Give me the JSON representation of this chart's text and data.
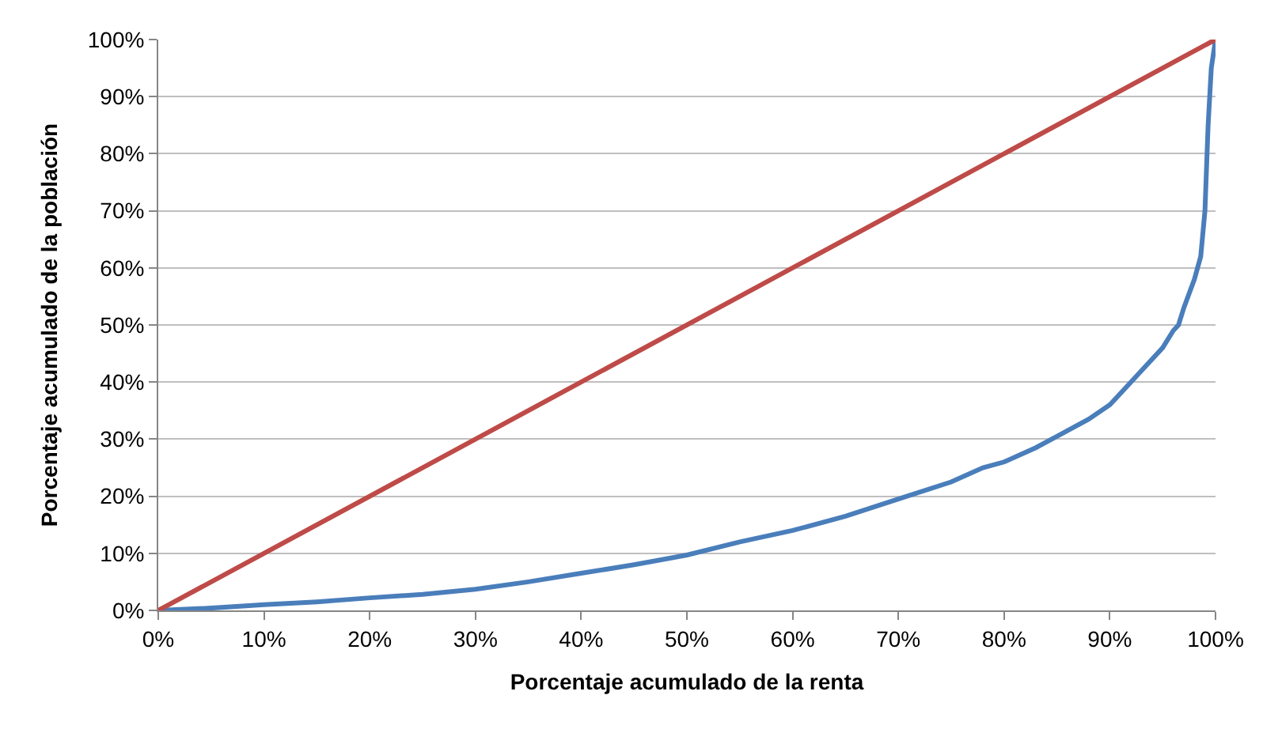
{
  "chart_data": {
    "type": "line",
    "xlabel": "Porcentaje acumulado de la renta",
    "ylabel": "Porcentaje acumulado de la población",
    "series": [
      {
        "color": "#4a7ebb",
        "x": [
          0,
          5,
          10,
          15,
          20,
          25,
          30,
          35,
          40,
          45,
          50,
          55,
          60,
          65,
          70,
          75,
          78,
          80,
          83,
          85,
          88,
          90,
          92,
          93,
          95,
          96,
          96.5,
          97,
          98,
          98.6,
          99,
          99.3,
          99.6,
          100
        ],
        "values": [
          0,
          0.4,
          1,
          1.5,
          2.2,
          2.8,
          3.7,
          5,
          6.5,
          8,
          9.7,
          12,
          14,
          16.5,
          19.5,
          22.5,
          25,
          26,
          28.5,
          30.5,
          33.5,
          36,
          40,
          42,
          46,
          49,
          50,
          53,
          58,
          62,
          70,
          85,
          95,
          100
        ]
      },
      {
        "color": "#be4b48",
        "x": [
          0,
          100
        ],
        "values": [
          0,
          100
        ]
      }
    ],
    "xlim": [
      0,
      100
    ],
    "ylim": [
      0,
      100
    ],
    "xticks": [
      {
        "value": 0,
        "label": "0%"
      },
      {
        "value": 10,
        "label": "10%"
      },
      {
        "value": 20,
        "label": "20%"
      },
      {
        "value": 30,
        "label": "30%"
      },
      {
        "value": 40,
        "label": "40%"
      },
      {
        "value": 50,
        "label": "50%"
      },
      {
        "value": 60,
        "label": "60%"
      },
      {
        "value": 70,
        "label": "70%"
      },
      {
        "value": 80,
        "label": "80%"
      },
      {
        "value": 90,
        "label": "90%"
      },
      {
        "value": 100,
        "label": "100%"
      }
    ],
    "yticks": [
      {
        "value": 0,
        "label": "0%"
      },
      {
        "value": 10,
        "label": "10%"
      },
      {
        "value": 20,
        "label": "20%"
      },
      {
        "value": 30,
        "label": "30%"
      },
      {
        "value": 40,
        "label": "40%"
      },
      {
        "value": 50,
        "label": "50%"
      },
      {
        "value": 60,
        "label": "60%"
      },
      {
        "value": 70,
        "label": "70%"
      },
      {
        "value": 80,
        "label": "80%"
      },
      {
        "value": 90,
        "label": "90%"
      },
      {
        "value": 100,
        "label": "100%"
      }
    ],
    "grid": "y"
  }
}
